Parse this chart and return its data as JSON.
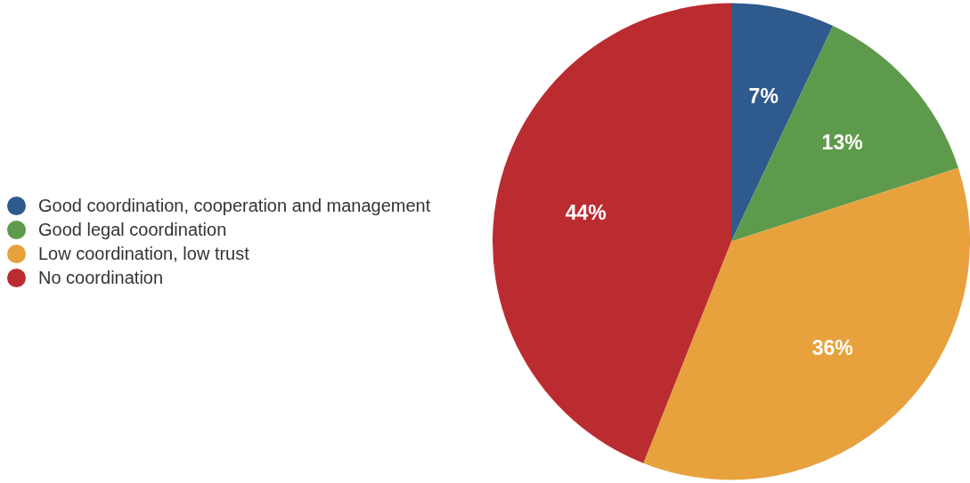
{
  "chart_data": {
    "type": "pie",
    "categories": [
      "Good coordination, cooperation and management",
      "Good legal coordination",
      "Low coordination, low trust",
      "No coordination"
    ],
    "values": [
      7,
      13,
      36,
      44
    ],
    "colors": [
      "#2e5a8e",
      "#5e9a4b",
      "#e7a23e",
      "#bb2c31"
    ],
    "value_labels": [
      "7%",
      "13%",
      "36%",
      "44%"
    ],
    "legend": "left"
  }
}
